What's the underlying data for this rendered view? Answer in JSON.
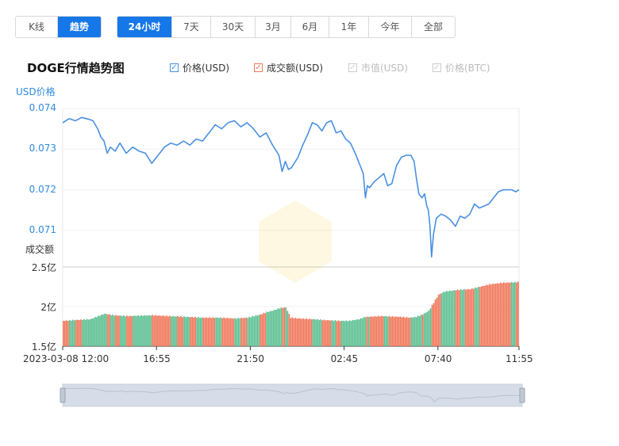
{
  "tabs_view": [
    {
      "label": "K线",
      "active": false
    },
    {
      "label": "趋势",
      "active": true
    }
  ],
  "tabs_range": [
    {
      "label": "24小时",
      "active": true
    },
    {
      "label": "7天",
      "active": false
    },
    {
      "label": "30天",
      "active": false
    },
    {
      "label": "3月",
      "active": false
    },
    {
      "label": "6月",
      "active": false
    },
    {
      "label": "1年",
      "active": false
    },
    {
      "label": "今年",
      "active": false
    },
    {
      "label": "全部",
      "active": false
    }
  ],
  "legend": [
    {
      "label": "价格(USD)",
      "checked": true,
      "color": "#4a90e2"
    },
    {
      "label": "成交额(USD)",
      "checked": true,
      "color": "#f0775a"
    },
    {
      "label": "市值(USD)",
      "checked": false,
      "color": "#cccccc"
    },
    {
      "label": "价格(BTC)",
      "checked": false,
      "color": "#cccccc"
    }
  ],
  "chart_data": {
    "type": "line",
    "title": "DOGE行情趋势图",
    "price_axis_label": "USD价格",
    "price_ticks": [
      "0.074",
      "0.073",
      "0.072",
      "0.071"
    ],
    "price_ylim": [
      0.0701,
      0.074
    ],
    "volume_axis_label": "成交额",
    "volume_ticks": [
      "2.5亿",
      "2亿",
      "1.5亿"
    ],
    "volume_ylim": [
      1.5,
      2.5
    ],
    "x_labels": [
      "2023-03-08 12:00",
      "16:55",
      "21:50",
      "02:45",
      "07:40",
      "11:55"
    ],
    "x_range": [
      0,
      1435
    ],
    "price_color": "#4a90e2",
    "volume_colors": {
      "up": "#f0775a",
      "down": "#5cbf91"
    },
    "price_points": [
      [
        0,
        0.07365
      ],
      [
        20,
        0.07375
      ],
      [
        40,
        0.0737
      ],
      [
        60,
        0.07378
      ],
      [
        80,
        0.07374
      ],
      [
        95,
        0.0737
      ],
      [
        110,
        0.0735
      ],
      [
        120,
        0.0733
      ],
      [
        130,
        0.0732
      ],
      [
        140,
        0.0729
      ],
      [
        150,
        0.07305
      ],
      [
        165,
        0.07295
      ],
      [
        180,
        0.07315
      ],
      [
        200,
        0.0729
      ],
      [
        220,
        0.07305
      ],
      [
        240,
        0.07295
      ],
      [
        260,
        0.0729
      ],
      [
        280,
        0.07265
      ],
      [
        300,
        0.07285
      ],
      [
        320,
        0.07305
      ],
      [
        340,
        0.07315
      ],
      [
        360,
        0.0731
      ],
      [
        380,
        0.0732
      ],
      [
        400,
        0.0731
      ],
      [
        420,
        0.07325
      ],
      [
        440,
        0.0732
      ],
      [
        460,
        0.0734
      ],
      [
        480,
        0.0736
      ],
      [
        500,
        0.0735
      ],
      [
        520,
        0.07365
      ],
      [
        540,
        0.0737
      ],
      [
        560,
        0.07355
      ],
      [
        580,
        0.07365
      ],
      [
        600,
        0.0735
      ],
      [
        620,
        0.0733
      ],
      [
        640,
        0.0734
      ],
      [
        660,
        0.0731
      ],
      [
        680,
        0.07285
      ],
      [
        690,
        0.07245
      ],
      [
        700,
        0.0727
      ],
      [
        710,
        0.0725
      ],
      [
        720,
        0.07255
      ],
      [
        740,
        0.0728
      ],
      [
        755,
        0.0731
      ],
      [
        770,
        0.07335
      ],
      [
        785,
        0.07365
      ],
      [
        800,
        0.0736
      ],
      [
        815,
        0.07345
      ],
      [
        830,
        0.07365
      ],
      [
        845,
        0.0737
      ],
      [
        860,
        0.0734
      ],
      [
        875,
        0.07345
      ],
      [
        890,
        0.07325
      ],
      [
        905,
        0.07315
      ],
      [
        920,
        0.0729
      ],
      [
        935,
        0.0726
      ],
      [
        945,
        0.0724
      ],
      [
        952,
        0.0718
      ],
      [
        958,
        0.0721
      ],
      [
        965,
        0.07205
      ],
      [
        980,
        0.0722
      ],
      [
        995,
        0.0723
      ],
      [
        1010,
        0.0724
      ],
      [
        1022,
        0.0721
      ],
      [
        1035,
        0.07215
      ],
      [
        1050,
        0.0726
      ],
      [
        1065,
        0.0728
      ],
      [
        1080,
        0.07285
      ],
      [
        1095,
        0.07285
      ],
      [
        1105,
        0.0727
      ],
      [
        1112,
        0.0723
      ],
      [
        1120,
        0.0719
      ],
      [
        1130,
        0.0718
      ],
      [
        1138,
        0.0719
      ],
      [
        1145,
        0.0716
      ],
      [
        1150,
        0.0715
      ],
      [
        1155,
        0.0711
      ],
      [
        1160,
        0.07035
      ],
      [
        1166,
        0.0709
      ],
      [
        1175,
        0.0713
      ],
      [
        1190,
        0.0714
      ],
      [
        1205,
        0.07135
      ],
      [
        1220,
        0.07125
      ],
      [
        1235,
        0.0711
      ],
      [
        1250,
        0.07135
      ],
      [
        1265,
        0.0713
      ],
      [
        1280,
        0.0714
      ],
      [
        1295,
        0.07165
      ],
      [
        1310,
        0.07155
      ],
      [
        1325,
        0.0716
      ],
      [
        1340,
        0.07165
      ],
      [
        1355,
        0.0718
      ],
      [
        1370,
        0.07195
      ],
      [
        1385,
        0.072
      ],
      [
        1400,
        0.072
      ],
      [
        1412,
        0.072
      ],
      [
        1425,
        0.07195
      ],
      [
        1435,
        0.072
      ]
    ],
    "volume_segments": [
      [
        0,
        1.82
      ],
      [
        35,
        1.83
      ],
      [
        85,
        1.84
      ],
      [
        110,
        1.88
      ],
      [
        130,
        1.91
      ],
      [
        160,
        1.89
      ],
      [
        200,
        1.88
      ],
      [
        280,
        1.89
      ],
      [
        330,
        1.88
      ],
      [
        390,
        1.87
      ],
      [
        440,
        1.86
      ],
      [
        490,
        1.86
      ],
      [
        540,
        1.85
      ],
      [
        580,
        1.86
      ],
      [
        600,
        1.88
      ],
      [
        620,
        1.9
      ],
      [
        640,
        1.93
      ],
      [
        660,
        1.95
      ],
      [
        680,
        1.98
      ],
      [
        700,
        1.99
      ],
      [
        715,
        1.86
      ],
      [
        740,
        1.85
      ],
      [
        790,
        1.84
      ],
      [
        820,
        1.83
      ],
      [
        870,
        1.82
      ],
      [
        900,
        1.82
      ],
      [
        930,
        1.84
      ],
      [
        950,
        1.87
      ],
      [
        1000,
        1.88
      ],
      [
        1060,
        1.87
      ],
      [
        1090,
        1.86
      ],
      [
        1110,
        1.87
      ],
      [
        1130,
        1.9
      ],
      [
        1150,
        1.95
      ],
      [
        1165,
        2.05
      ],
      [
        1180,
        2.15
      ],
      [
        1200,
        2.19
      ],
      [
        1240,
        2.21
      ],
      [
        1280,
        2.22
      ],
      [
        1310,
        2.25
      ],
      [
        1340,
        2.28
      ],
      [
        1380,
        2.3
      ],
      [
        1435,
        2.31
      ]
    ]
  }
}
